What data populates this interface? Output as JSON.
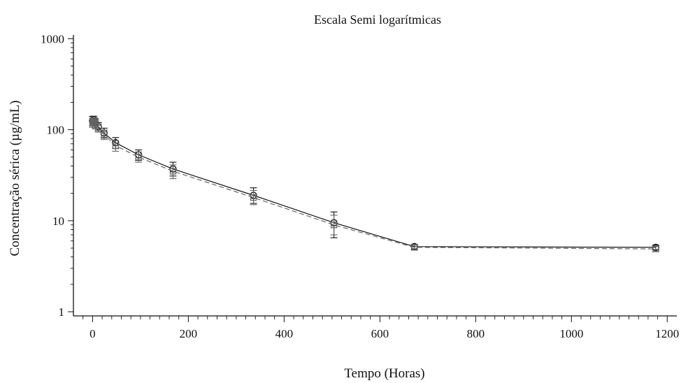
{
  "chart_data": {
    "type": "line",
    "title": "Escala Semi logarítmicas",
    "xlabel": "Tempo (Horas)",
    "ylabel": "Concentração sérica (µg/mL)",
    "xlim": [
      -40,
      1220
    ],
    "ylim": [
      0.9,
      1100
    ],
    "yscale": "log",
    "xticks": [
      0,
      200,
      400,
      600,
      800,
      1000,
      1200
    ],
    "xtick_labels": [
      "0",
      "200",
      "400",
      "600",
      "800",
      "1000",
      "1200"
    ],
    "yticks": [
      1,
      10,
      100,
      1000
    ],
    "ytick_labels": [
      "1",
      "10",
      "100",
      "1000"
    ],
    "grid": false,
    "series": [
      {
        "marker": "circle",
        "line": "solid",
        "color": "#111111",
        "points": [
          {
            "x": 0,
            "y": 125,
            "err_low": 110,
            "err_high": 140
          },
          {
            "x": 2,
            "y": 128,
            "err_low": 115,
            "err_high": 141
          },
          {
            "x": 4,
            "y": 122,
            "err_low": 110,
            "err_high": 134
          },
          {
            "x": 6,
            "y": 118,
            "err_low": 105,
            "err_high": 131
          },
          {
            "x": 12,
            "y": 108,
            "err_low": 97,
            "err_high": 120
          },
          {
            "x": 24,
            "y": 92,
            "err_low": 81,
            "err_high": 104
          },
          {
            "x": 48,
            "y": 72,
            "err_low": 62,
            "err_high": 82
          },
          {
            "x": 96,
            "y": 53,
            "err_low": 46,
            "err_high": 60
          },
          {
            "x": 168,
            "y": 37,
            "err_low": 31,
            "err_high": 44
          },
          {
            "x": 336,
            "y": 19,
            "err_low": 15.5,
            "err_high": 23
          },
          {
            "x": 504,
            "y": 9.5,
            "err_low": 6.5,
            "err_high": 12.5
          },
          {
            "x": 672,
            "y": 5.2,
            "err_low": 4.9,
            "err_high": 5.5
          },
          {
            "x": 1176,
            "y": 5.1,
            "err_low": 4.8,
            "err_high": 5.4
          }
        ]
      },
      {
        "marker": "square",
        "line": "dashed",
        "color": "#666666",
        "points": [
          {
            "x": 0,
            "y": 120,
            "err_low": 106,
            "err_high": 134
          },
          {
            "x": 2,
            "y": 124,
            "err_low": 110,
            "err_high": 138
          },
          {
            "x": 4,
            "y": 118,
            "err_low": 106,
            "err_high": 130
          },
          {
            "x": 6,
            "y": 114,
            "err_low": 102,
            "err_high": 126
          },
          {
            "x": 12,
            "y": 104,
            "err_low": 94,
            "err_high": 116
          },
          {
            "x": 24,
            "y": 88,
            "err_low": 78,
            "err_high": 99
          },
          {
            "x": 48,
            "y": 67,
            "err_low": 58,
            "err_high": 76
          },
          {
            "x": 96,
            "y": 50,
            "err_low": 44,
            "err_high": 57
          },
          {
            "x": 168,
            "y": 35,
            "err_low": 29,
            "err_high": 41
          },
          {
            "x": 336,
            "y": 18,
            "err_low": 15,
            "err_high": 21.5
          },
          {
            "x": 504,
            "y": 9,
            "err_low": 7,
            "err_high": 11.5
          },
          {
            "x": 672,
            "y": 5.1,
            "err_low": 4.8,
            "err_high": 5.4
          },
          {
            "x": 1176,
            "y": 4.9,
            "err_low": 4.6,
            "err_high": 5.2
          }
        ]
      }
    ]
  }
}
